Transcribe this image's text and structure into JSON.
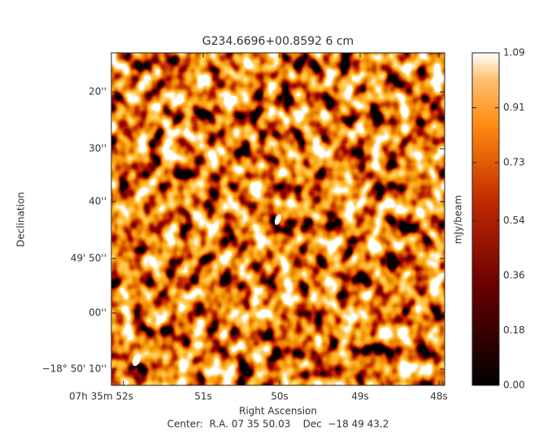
{
  "chart_data": {
    "type": "image",
    "title": "G234.6696+00.8592 6 cm",
    "x_label": "Right Ascension",
    "y_label": "Declination",
    "xtick_labels": [
      "07h 35m 52s",
      "51s",
      "50s",
      "49s",
      "48s"
    ],
    "ytick_labels": [
      "20''",
      "30''",
      "40''",
      "49' 50''",
      "00''",
      "−18° 50' 10''"
    ],
    "colorbar": {
      "label": "mJy/beam",
      "clim": [
        0,
        1.09
      ],
      "ticks": [
        {
          "value": 0,
          "label": "0.00"
        },
        {
          "value": 0.18,
          "label": "0.18"
        },
        {
          "value": 0.36,
          "label": "0.36"
        },
        {
          "value": 0.54,
          "label": "0.54"
        },
        {
          "value": 0.73,
          "label": "0.73"
        },
        {
          "value": 0.91,
          "label": "0.91"
        },
        {
          "value": 1.09,
          "label": "1.09"
        }
      ]
    },
    "footer": "Center:  R.A. 07 35 50.03    Dec  −18 49 43.2"
  }
}
